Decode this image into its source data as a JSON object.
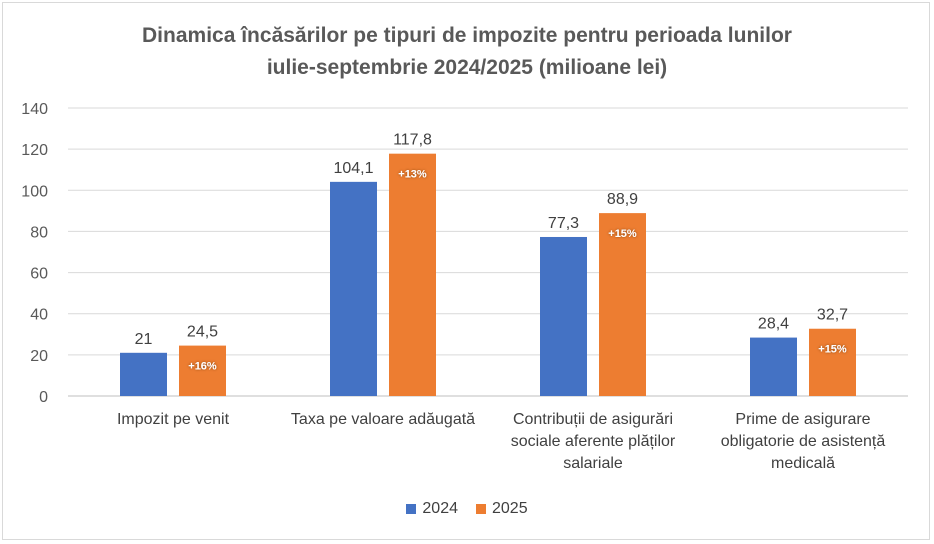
{
  "chart_data": {
    "type": "bar",
    "title": "Dinamica încăsărilor pe tipuri de impozite pentru perioada lunilor iulie-septembrie 2024/2025 (milioane lei)",
    "title_lines": [
      "Dinamica încăsărilor pe tipuri de impozite pentru perioada lunilor",
      "iulie-septembrie 2024/2025 (milioane lei)"
    ],
    "categories": [
      "Impozit pe venit",
      "Taxa pe valoare adăugată",
      "Contribuții de asigurări sociale aferente plăților salariale",
      "Prime de asigurare obligatorie de asistență medicală"
    ],
    "series": [
      {
        "name": "2024",
        "color": "#4472c4",
        "values": [
          21,
          104.1,
          77.3,
          28.4
        ],
        "labels": [
          "21",
          "104,1",
          "77,3",
          "28,4"
        ]
      },
      {
        "name": "2025",
        "color": "#ed7d31",
        "values": [
          24.5,
          117.8,
          88.9,
          32.7
        ],
        "labels": [
          "24,5",
          "117,8",
          "88,9",
          "32,7"
        ],
        "inner_labels": [
          "+16%",
          "+13%",
          "+15%",
          "+15%"
        ]
      }
    ],
    "ylim": [
      0,
      140
    ],
    "yticks": [
      0,
      20,
      40,
      60,
      80,
      100,
      120,
      140
    ],
    "xlabel": "",
    "ylabel": "",
    "grid": true,
    "legend": "bottom"
  }
}
